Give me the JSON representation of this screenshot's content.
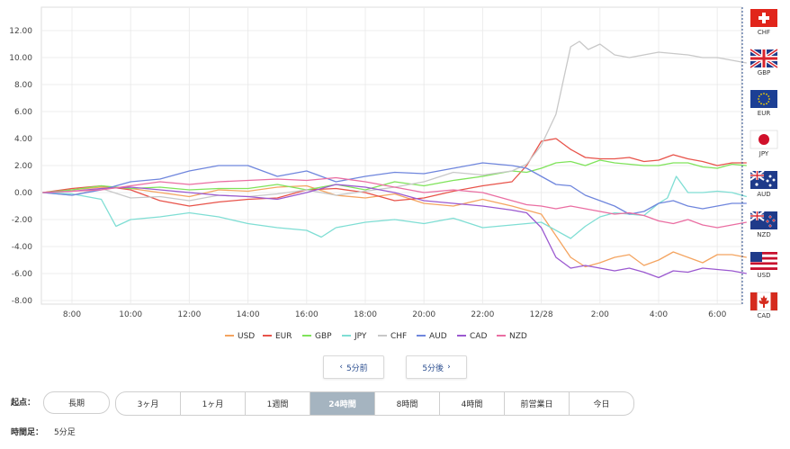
{
  "chart_data": {
    "type": "line",
    "y_ticks": [
      "12.00",
      "10.00",
      "8.00",
      "6.00",
      "4.00",
      "2.00",
      "0.00",
      "-2.00",
      "-4.00",
      "-6.00",
      "-8.00"
    ],
    "ylim": [
      -8,
      13.5
    ],
    "x_ticks": [
      "8:00",
      "10:00",
      "12:00",
      "14:00",
      "16:00",
      "18:00",
      "20:00",
      "22:00",
      "12/28",
      "2:00",
      "4:00",
      "6:00"
    ],
    "x_tick_hours": [
      8,
      10,
      12,
      14,
      16,
      18,
      20,
      22,
      24,
      26,
      28,
      30
    ],
    "xlim": [
      7,
      31.1
    ],
    "grid": true,
    "legend_position": "bottom",
    "series": [
      {
        "name": "USD",
        "color": "#f4a460",
        "x": [
          7,
          8,
          9,
          10,
          11,
          12,
          13,
          14,
          15,
          16,
          17,
          18,
          19,
          20,
          21,
          22,
          23,
          24,
          25,
          25.5,
          26,
          26.5,
          27,
          27.5,
          28,
          28.5,
          29,
          29.5,
          30,
          30.5,
          31
        ],
        "y": [
          0.0,
          0.2,
          0.4,
          0.3,
          0.0,
          -0.3,
          0.2,
          0.1,
          0.4,
          0.5,
          -0.2,
          -0.4,
          -0.1,
          -0.8,
          -1.0,
          -0.5,
          -1.0,
          -1.6,
          -4.8,
          -5.5,
          -5.2,
          -4.8,
          -4.6,
          -5.4,
          -5.0,
          -4.4,
          -4.8,
          -5.2,
          -4.6,
          -4.6,
          -4.8
        ]
      },
      {
        "name": "EUR",
        "color": "#e8534a",
        "x": [
          7,
          8,
          9,
          10,
          11,
          12,
          13,
          14,
          15,
          16,
          17,
          18,
          19,
          20,
          21,
          22,
          23,
          23.5,
          24,
          24.5,
          25,
          25.5,
          26,
          26.5,
          27,
          27.5,
          28,
          28.5,
          29,
          29.5,
          30,
          30.5,
          31
        ],
        "y": [
          0.0,
          0.3,
          0.5,
          0.2,
          -0.6,
          -1.0,
          -0.7,
          -0.5,
          -0.4,
          0.2,
          0.3,
          0.0,
          -0.6,
          -0.4,
          0.1,
          0.5,
          0.8,
          2.0,
          3.8,
          4.0,
          3.2,
          2.6,
          2.5,
          2.5,
          2.6,
          2.3,
          2.4,
          2.8,
          2.5,
          2.3,
          2.0,
          2.2,
          2.2
        ]
      },
      {
        "name": "GBP",
        "color": "#7fe35a",
        "x": [
          7,
          8,
          9,
          10,
          11,
          12,
          13,
          14,
          15,
          16,
          17,
          18,
          19,
          20,
          21,
          22,
          23,
          23.5,
          24,
          24.5,
          25,
          25.5,
          26,
          26.5,
          27,
          27.5,
          28,
          28.5,
          29,
          29.5,
          30,
          30.5,
          31
        ],
        "y": [
          0.0,
          0.2,
          0.5,
          0.3,
          0.4,
          0.2,
          0.3,
          0.3,
          0.6,
          0.2,
          0.6,
          0.2,
          0.8,
          0.5,
          0.9,
          1.2,
          1.6,
          1.5,
          1.8,
          2.2,
          2.3,
          2.0,
          2.4,
          2.2,
          2.1,
          2.0,
          2.0,
          2.2,
          2.2,
          1.9,
          1.8,
          2.1,
          2.0
        ]
      },
      {
        "name": "JPY",
        "color": "#7fded4",
        "x": [
          7,
          8,
          9,
          9.5,
          10,
          11,
          12,
          13,
          14,
          15,
          16,
          16.5,
          17,
          18,
          19,
          20,
          21,
          22,
          23,
          24,
          25,
          25.5,
          26,
          26.5,
          27,
          27.5,
          28,
          28.3,
          28.6,
          29,
          29.5,
          30,
          30.5,
          31
        ],
        "y": [
          0.0,
          -0.1,
          -0.5,
          -2.5,
          -2.0,
          -1.8,
          -1.5,
          -1.8,
          -2.3,
          -2.6,
          -2.8,
          -3.3,
          -2.6,
          -2.2,
          -2.0,
          -2.3,
          -1.9,
          -2.6,
          -2.4,
          -2.2,
          -3.4,
          -2.5,
          -1.8,
          -1.5,
          -1.6,
          -1.7,
          -0.8,
          -0.4,
          1.2,
          0.0,
          0.0,
          0.1,
          0.0,
          -0.3
        ]
      },
      {
        "name": "CHF",
        "color": "#c8c8c8",
        "x": [
          7,
          8,
          9,
          10,
          11,
          12,
          13,
          14,
          15,
          16,
          17,
          18,
          19,
          20,
          21,
          22,
          23,
          23.5,
          24,
          24.5,
          25,
          25.3,
          25.6,
          26,
          26.5,
          27,
          27.5,
          28,
          28.5,
          29,
          29.5,
          30,
          30.5,
          31
        ],
        "y": [
          0.0,
          -0.2,
          0.3,
          -0.4,
          -0.3,
          -0.6,
          -0.2,
          -0.3,
          -0.1,
          0.2,
          -0.2,
          0.1,
          0.4,
          0.8,
          1.5,
          1.3,
          1.6,
          2.1,
          3.5,
          5.8,
          10.8,
          11.2,
          10.6,
          11.0,
          10.2,
          10.0,
          10.2,
          10.4,
          10.3,
          10.2,
          10.0,
          10.0,
          9.8,
          9.6
        ]
      },
      {
        "name": "AUD",
        "color": "#6f86dd",
        "x": [
          7,
          8,
          9,
          10,
          11,
          12,
          13,
          14,
          15,
          16,
          17,
          18,
          19,
          20,
          21,
          22,
          23,
          23.5,
          24,
          24.5,
          25,
          25.5,
          26,
          26.5,
          27,
          27.5,
          28,
          28.5,
          29,
          29.5,
          30,
          30.5,
          31
        ],
        "y": [
          0.0,
          -0.2,
          0.2,
          0.8,
          1.0,
          1.6,
          2.0,
          2.0,
          1.2,
          1.6,
          0.8,
          1.2,
          1.5,
          1.4,
          1.8,
          2.2,
          2.0,
          1.8,
          1.2,
          0.6,
          0.5,
          -0.2,
          -0.6,
          -1.0,
          -1.6,
          -1.4,
          -0.8,
          -0.6,
          -1.0,
          -1.2,
          -1.0,
          -0.8,
          -0.8
        ]
      },
      {
        "name": "CAD",
        "color": "#9b59d0",
        "x": [
          7,
          8,
          9,
          10,
          11,
          12,
          13,
          14,
          15,
          16,
          17,
          18,
          19,
          20,
          21,
          22,
          23,
          23.5,
          24,
          24.5,
          25,
          25.5,
          26,
          26.5,
          27,
          27.5,
          28,
          28.5,
          29,
          29.5,
          30,
          30.5,
          31
        ],
        "y": [
          0.0,
          0.1,
          0.3,
          0.4,
          0.2,
          0.0,
          -0.2,
          -0.3,
          -0.5,
          0.0,
          0.6,
          0.4,
          0.0,
          -0.6,
          -0.8,
          -1.0,
          -1.3,
          -1.5,
          -2.6,
          -4.8,
          -5.6,
          -5.4,
          -5.6,
          -5.8,
          -5.6,
          -5.9,
          -6.3,
          -5.8,
          -5.9,
          -5.6,
          -5.7,
          -5.8,
          -6.0
        ]
      },
      {
        "name": "NZD",
        "color": "#ea6ea2",
        "x": [
          7,
          8,
          9,
          10,
          11,
          12,
          13,
          14,
          15,
          16,
          17,
          18,
          19,
          20,
          21,
          22,
          23,
          23.5,
          24,
          24.5,
          25,
          25.5,
          26,
          26.5,
          27,
          27.5,
          28,
          28.5,
          29,
          29.5,
          30,
          30.5,
          31
        ],
        "y": [
          0.0,
          0.1,
          0.2,
          0.5,
          0.8,
          0.6,
          0.8,
          0.9,
          1.0,
          0.9,
          1.1,
          0.8,
          0.4,
          0.0,
          0.2,
          0.0,
          -0.6,
          -0.9,
          -1.0,
          -1.2,
          -1.0,
          -1.2,
          -1.4,
          -1.6,
          -1.5,
          -1.7,
          -2.1,
          -2.3,
          -2.0,
          -2.4,
          -2.6,
          -2.4,
          -2.2
        ]
      }
    ]
  },
  "flags": [
    {
      "code": "CHF",
      "icon": "swiss-flag-icon"
    },
    {
      "code": "GBP",
      "icon": "uk-flag-icon"
    },
    {
      "code": "EUR",
      "icon": "eu-flag-icon"
    },
    {
      "code": "JPY",
      "icon": "japan-flag-icon"
    },
    {
      "code": "AUD",
      "icon": "australia-flag-icon"
    },
    {
      "code": "NZD",
      "icon": "newzealand-flag-icon"
    },
    {
      "code": "USD",
      "icon": "us-flag-icon"
    },
    {
      "code": "CAD",
      "icon": "canada-flag-icon"
    }
  ],
  "nav": {
    "prev_label": "5分前",
    "next_label": "5分後"
  },
  "origin": {
    "label": "起点：",
    "long_label": "長期",
    "options": [
      "3ヶ月",
      "1ヶ月",
      "1週間",
      "24時間",
      "8時間",
      "4時間",
      "前営業日",
      "今日"
    ],
    "active": "24時間"
  },
  "timeframe": {
    "label": "時間足：",
    "value": "5分足"
  }
}
